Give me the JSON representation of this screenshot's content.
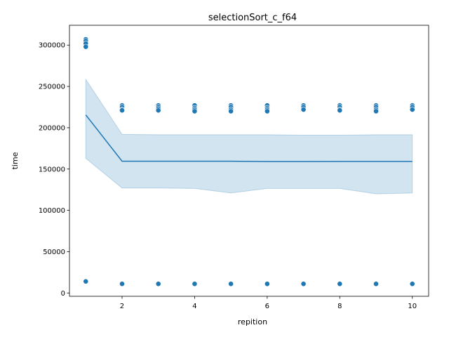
{
  "chart_data": {
    "type": "scatter",
    "title": "selectionSort_c_f64",
    "xlabel": "repition",
    "ylabel": "time",
    "xlim": [
      0.55,
      10.45
    ],
    "ylim": [
      -4000,
      324000
    ],
    "x_ticks": [
      2,
      4,
      6,
      8,
      10
    ],
    "y_ticks": [
      0,
      50000,
      100000,
      150000,
      200000,
      250000,
      300000
    ],
    "x_tick_labels": [
      "2",
      "4",
      "6",
      "8",
      "10"
    ],
    "y_tick_labels": [
      "0",
      "50000",
      "100000",
      "150000",
      "200000",
      "250000",
      "300000"
    ],
    "grid": false,
    "legend": "none",
    "colors": {
      "series": "#1f77b4",
      "band": "#1f77b4",
      "axes": "#000000"
    },
    "scatter_points": [
      {
        "x": 1,
        "y": 307000
      },
      {
        "x": 1,
        "y": 305000
      },
      {
        "x": 1,
        "y": 302000
      },
      {
        "x": 1,
        "y": 298000
      },
      {
        "x": 1,
        "y": 14000
      },
      {
        "x": 2,
        "y": 227000
      },
      {
        "x": 2,
        "y": 225000
      },
      {
        "x": 2,
        "y": 222000
      },
      {
        "x": 2,
        "y": 221000
      },
      {
        "x": 2,
        "y": 11000
      },
      {
        "x": 3,
        "y": 227000
      },
      {
        "x": 3,
        "y": 225000
      },
      {
        "x": 3,
        "y": 223000
      },
      {
        "x": 3,
        "y": 221000
      },
      {
        "x": 3,
        "y": 11000
      },
      {
        "x": 4,
        "y": 227000
      },
      {
        "x": 4,
        "y": 224000
      },
      {
        "x": 4,
        "y": 222000
      },
      {
        "x": 4,
        "y": 220000
      },
      {
        "x": 4,
        "y": 11000
      },
      {
        "x": 5,
        "y": 227000
      },
      {
        "x": 5,
        "y": 225000
      },
      {
        "x": 5,
        "y": 222000
      },
      {
        "x": 5,
        "y": 220000
      },
      {
        "x": 5,
        "y": 11000
      },
      {
        "x": 6,
        "y": 227000
      },
      {
        "x": 6,
        "y": 224000
      },
      {
        "x": 6,
        "y": 222000
      },
      {
        "x": 6,
        "y": 220000
      },
      {
        "x": 6,
        "y": 11000
      },
      {
        "x": 7,
        "y": 227000
      },
      {
        "x": 7,
        "y": 225000
      },
      {
        "x": 7,
        "y": 222000
      },
      {
        "x": 7,
        "y": 11000
      },
      {
        "x": 8,
        "y": 227000
      },
      {
        "x": 8,
        "y": 225000
      },
      {
        "x": 8,
        "y": 222000
      },
      {
        "x": 8,
        "y": 221000
      },
      {
        "x": 8,
        "y": 11000
      },
      {
        "x": 9,
        "y": 227000
      },
      {
        "x": 9,
        "y": 225000
      },
      {
        "x": 9,
        "y": 222000
      },
      {
        "x": 9,
        "y": 220000
      },
      {
        "x": 9,
        "y": 11000
      },
      {
        "x": 10,
        "y": 227000
      },
      {
        "x": 10,
        "y": 225000
      },
      {
        "x": 10,
        "y": 222000
      },
      {
        "x": 10,
        "y": 11000
      }
    ],
    "mean_line": {
      "x": [
        1,
        2,
        3,
        4,
        5,
        6,
        7,
        8,
        9,
        10
      ],
      "y": [
        215500,
        159500,
        159500,
        159500,
        159500,
        159000,
        159000,
        159200,
        159200,
        159200
      ]
    },
    "ci_band": {
      "x": [
        1,
        2,
        3,
        4,
        5,
        6,
        7,
        8,
        9,
        10
      ],
      "lower": [
        163000,
        127000,
        127000,
        126500,
        121000,
        126500,
        126500,
        126500,
        120000,
        121000
      ],
      "upper": [
        258500,
        192000,
        191500,
        191500,
        191500,
        191500,
        191000,
        191000,
        191500,
        191500
      ]
    }
  }
}
